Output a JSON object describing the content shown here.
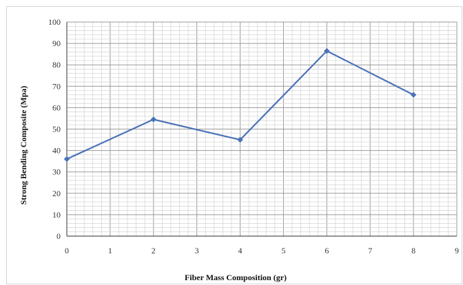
{
  "chart_data": {
    "type": "line",
    "title": "",
    "xlabel": "Fiber Mass Composition (gr)",
    "ylabel": "Strong Bending Composite (Mpa)",
    "xlim": [
      0,
      9
    ],
    "ylim": [
      0,
      100
    ],
    "x_ticks": [
      "0",
      "1",
      "2",
      "3",
      "4",
      "5",
      "6",
      "7",
      "8",
      "9"
    ],
    "y_ticks": [
      "0",
      "10",
      "20",
      "30",
      "40",
      "50",
      "60",
      "70",
      "80",
      "90",
      "100"
    ],
    "grid": true,
    "legend": "none",
    "series": [
      {
        "x": [
          0,
          2,
          4,
          6,
          8
        ],
        "y": [
          36,
          54.5,
          45,
          86.5,
          66
        ],
        "color": "#4a72b8"
      }
    ]
  }
}
